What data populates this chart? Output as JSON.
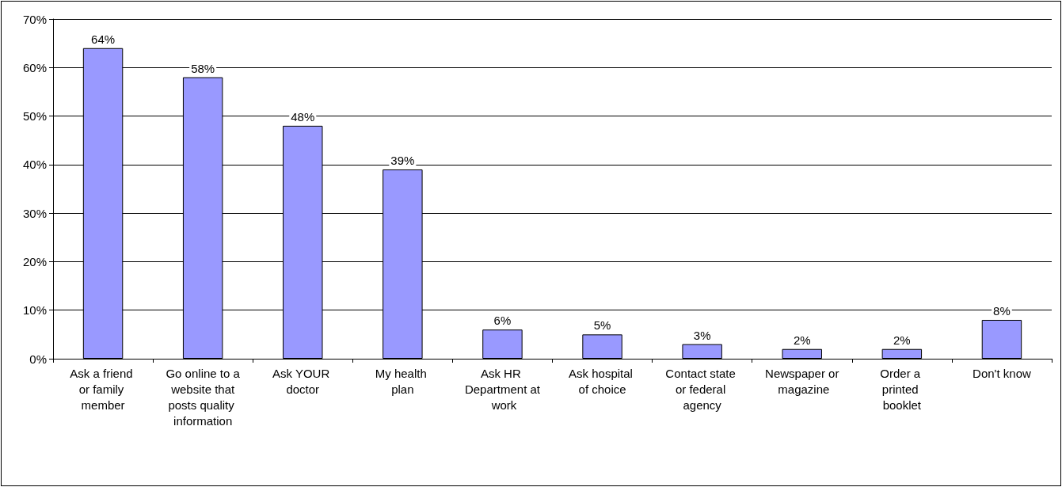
{
  "chart_data": {
    "type": "bar",
    "categories": [
      "Ask a friend or family member",
      "Go online to a website that posts quality information",
      "Ask YOUR doctor",
      "My health plan",
      "Ask HR Department at work",
      "Ask hospital of choice",
      "Contact state or federal agency",
      "Newspaper or magazine",
      "Order a printed booklet",
      "Don't know"
    ],
    "values": [
      64,
      58,
      48,
      39,
      6,
      5,
      3,
      2,
      2,
      8
    ],
    "value_labels": [
      "64%",
      "58%",
      "48%",
      "39%",
      "6%",
      "5%",
      "3%",
      "2%",
      "2%",
      "8%"
    ],
    "color": "#9999ff",
    "ylim": [
      0,
      70
    ],
    "yticks": [
      {
        "value": 0,
        "label": "0%"
      },
      {
        "value": 10,
        "label": "10%"
      },
      {
        "value": 20,
        "label": "20%"
      },
      {
        "value": 30,
        "label": "30%"
      },
      {
        "value": 40,
        "label": "40%"
      },
      {
        "value": 50,
        "label": "50%"
      },
      {
        "value": 60,
        "label": "60%"
      },
      {
        "value": 70,
        "label": "70%"
      }
    ],
    "grid": "y"
  }
}
